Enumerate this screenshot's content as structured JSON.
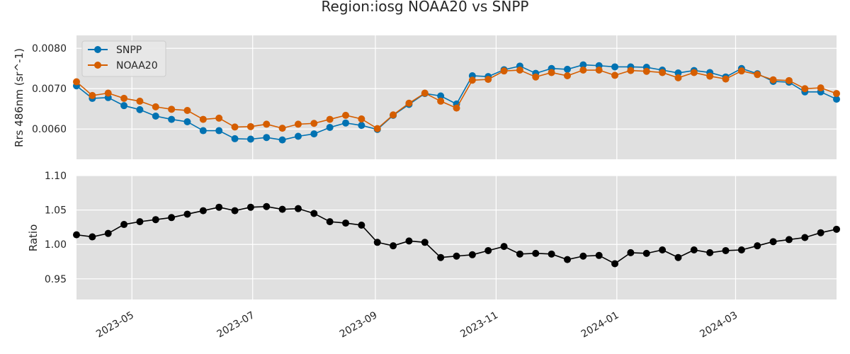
{
  "title": "Region:iosg NOAA20 vs SNPP",
  "chart_data": [
    {
      "type": "line",
      "ylabel": "Rrs 486nm (sr^-1)",
      "ylim": [
        0.00525,
        0.00832
      ],
      "yticks": [
        "0.0060",
        "0.0070",
        "0.0080"
      ],
      "ytick_values": [
        0.006,
        0.007,
        0.008
      ],
      "grid": true,
      "legend_position": "top-left",
      "x": [
        "2023-04-03",
        "2023-04-11",
        "2023-04-19",
        "2023-04-27",
        "2023-05-05",
        "2023-05-13",
        "2023-05-21",
        "2023-05-29",
        "2023-06-06",
        "2023-06-14",
        "2023-06-22",
        "2023-06-30",
        "2023-07-08",
        "2023-07-16",
        "2023-07-24",
        "2023-08-01",
        "2023-08-09",
        "2023-08-17",
        "2023-08-25",
        "2023-09-02",
        "2023-09-10",
        "2023-09-18",
        "2023-09-26",
        "2023-10-04",
        "2023-10-12",
        "2023-10-20",
        "2023-10-28",
        "2023-11-05",
        "2023-11-13",
        "2023-11-21",
        "2023-11-29",
        "2023-12-07",
        "2023-12-15",
        "2023-12-23",
        "2023-12-31",
        "2024-01-08",
        "2024-01-16",
        "2024-01-24",
        "2024-02-01",
        "2024-02-09",
        "2024-02-17",
        "2024-02-25",
        "2024-03-04",
        "2024-03-12",
        "2024-03-20",
        "2024-03-28",
        "2024-04-05",
        "2024-04-13",
        "2024-04-21"
      ],
      "series": [
        {
          "name": "SNPP",
          "color": "#0072B2",
          "values": [
            0.00707,
            0.00676,
            0.00678,
            0.00658,
            0.00648,
            0.00632,
            0.00624,
            0.00618,
            0.00596,
            0.00596,
            0.00576,
            0.00575,
            0.00579,
            0.00573,
            0.00582,
            0.00588,
            0.00604,
            0.00615,
            0.00609,
            0.00599,
            0.00634,
            0.00661,
            0.00688,
            0.00682,
            0.00662,
            0.00732,
            0.0073,
            0.00747,
            0.00756,
            0.00738,
            0.0075,
            0.00748,
            0.00759,
            0.00757,
            0.00754,
            0.00754,
            0.00753,
            0.00746,
            0.00739,
            0.00745,
            0.0074,
            0.00729,
            0.0075,
            0.00737,
            0.00718,
            0.00716,
            0.00692,
            0.00692,
            0.00674
          ]
        },
        {
          "name": "NOAA20",
          "color": "#D55E00",
          "values": [
            0.00717,
            0.00683,
            0.00689,
            0.00676,
            0.00669,
            0.00655,
            0.00649,
            0.00646,
            0.00624,
            0.00627,
            0.00605,
            0.00606,
            0.00612,
            0.00602,
            0.00612,
            0.00614,
            0.00624,
            0.00634,
            0.00625,
            0.00601,
            0.00635,
            0.00664,
            0.00689,
            0.00669,
            0.00652,
            0.00721,
            0.00723,
            0.00744,
            0.00746,
            0.00729,
            0.0074,
            0.00732,
            0.00746,
            0.00746,
            0.00733,
            0.00745,
            0.00743,
            0.0074,
            0.00727,
            0.0074,
            0.00731,
            0.00724,
            0.00744,
            0.00735,
            0.00722,
            0.0072,
            0.007,
            0.00702,
            0.00688
          ]
        }
      ]
    },
    {
      "type": "line",
      "ylabel": "Ratio",
      "ylim": [
        0.92,
        1.1
      ],
      "yticks": [
        "0.95",
        "1.00",
        "1.05",
        "1.10"
      ],
      "ytick_values": [
        0.95,
        1.0,
        1.05,
        1.1
      ],
      "grid": true,
      "series": [
        {
          "color": "#000000",
          "values": [
            1.014,
            1.011,
            1.016,
            1.029,
            1.033,
            1.036,
            1.039,
            1.044,
            1.049,
            1.054,
            1.049,
            1.054,
            1.055,
            1.051,
            1.052,
            1.045,
            1.033,
            1.031,
            1.028,
            1.003,
            0.998,
            1.005,
            1.003,
            0.981,
            0.983,
            0.985,
            0.991,
            0.997,
            0.986,
            0.987,
            0.986,
            0.978,
            0.983,
            0.984,
            0.972,
            0.988,
            0.987,
            0.992,
            0.981,
            0.992,
            0.988,
            0.991,
            0.992,
            0.998,
            1.004,
            1.007,
            1.01,
            1.017,
            1.022
          ]
        }
      ]
    }
  ],
  "xaxis": {
    "ticks": [
      "2023-05",
      "2023-07",
      "2023-09",
      "2023-11",
      "2024-01",
      "2024-03"
    ],
    "tick_dates": [
      "2023-05-01",
      "2023-07-01",
      "2023-09-01",
      "2023-11-01",
      "2024-01-01",
      "2024-03-01"
    ],
    "range": [
      "2023-04-03",
      "2024-04-21"
    ]
  }
}
